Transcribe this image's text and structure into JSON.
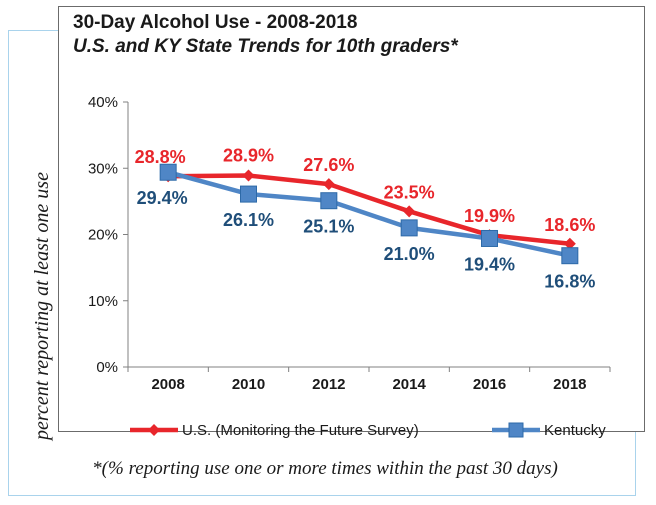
{
  "chart_data": {
    "type": "line",
    "title": "30-Day Alcohol Use - 2008-2018",
    "subtitle": "U.S. and KY State Trends for 10th graders*",
    "ylabel": "percent reporting at least one use",
    "xlabel": "",
    "categories": [
      "2008",
      "2010",
      "2012",
      "2014",
      "2016",
      "2018"
    ],
    "ylim": [
      0,
      40
    ],
    "yticks": [
      "0%",
      "10%",
      "20%",
      "30%",
      "40%"
    ],
    "yticks_values": [
      0,
      10,
      20,
      30,
      40
    ],
    "grid": false,
    "legend_position": "bottom",
    "series": [
      {
        "name": "U.S. (Monitoring the Future Survey)",
        "color": "#e8262b",
        "marker": "diamond",
        "values": [
          28.8,
          28.9,
          27.6,
          23.5,
          19.9,
          18.6
        ],
        "labels": [
          "28.8%",
          "28.9%",
          "27.6%",
          "23.5%",
          "19.9%",
          "18.6%"
        ]
      },
      {
        "name": "Kentucky",
        "color": "#4f86c6",
        "label_color": "#1f4e79",
        "marker": "square",
        "values": [
          29.4,
          26.1,
          25.1,
          21.0,
          19.4,
          16.8
        ],
        "labels": [
          "29.4%",
          "26.1%",
          "25.1%",
          "21.0%",
          "19.4%",
          "16.8%"
        ]
      }
    ]
  },
  "footnote": "*(% reporting use one or more times within the past 30 days)"
}
